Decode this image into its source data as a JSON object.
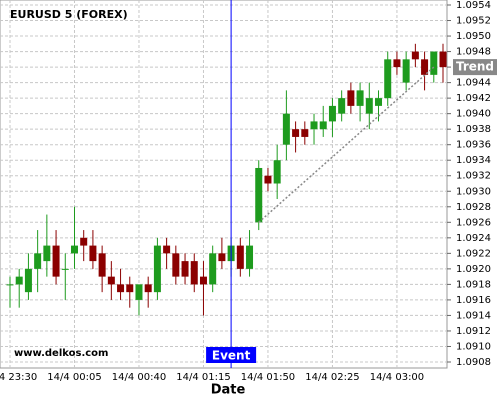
{
  "chart_data": {
    "type": "candlestick",
    "title": "EURUSD 5 (FOREX)",
    "watermark": "www.delkos.com",
    "x_label": "Date",
    "categories": [
      "14/4 23:30",
      null,
      null,
      null,
      null,
      null,
      null,
      "14/4 00:05",
      null,
      null,
      null,
      null,
      null,
      null,
      "14/4 00:40",
      null,
      null,
      null,
      null,
      null,
      null,
      "14/4 01:15",
      null,
      null,
      null,
      null,
      null,
      null,
      "14/4 01:50",
      null,
      null,
      null,
      null,
      null,
      null,
      "14/4 02:25",
      null,
      null,
      null,
      null,
      null,
      null,
      "14/4 03:00",
      null,
      null,
      null,
      null,
      null
    ],
    "open": [
      1.0918,
      1.0918,
      1.0917,
      1.092,
      1.0921,
      1.0923,
      1.092,
      1.0922,
      1.0924,
      1.0923,
      1.0922,
      1.0919,
      1.0918,
      1.0918,
      1.0916,
      1.0918,
      1.0917,
      1.0923,
      1.0922,
      1.0921,
      1.0921,
      1.0919,
      1.0918,
      1.0922,
      1.0921,
      1.0923,
      1.092,
      1.0926,
      1.0932,
      1.0931,
      1.0936,
      1.0938,
      1.0938,
      1.0938,
      1.0938,
      1.0939,
      1.094,
      1.0943,
      1.0941,
      1.094,
      1.0941,
      1.0942,
      1.0947,
      1.0944,
      1.0948,
      1.0947,
      1.0945,
      1.0948
    ],
    "high": [
      1.0919,
      1.092,
      1.0922,
      1.0925,
      1.0927,
      1.0925,
      1.0922,
      1.0928,
      1.0925,
      1.0925,
      1.0923,
      1.0921,
      1.092,
      1.0919,
      1.0918,
      1.0919,
      1.0924,
      1.0924,
      1.0923,
      1.0922,
      1.0922,
      1.0921,
      1.0923,
      1.0924,
      1.0924,
      1.0924,
      1.0925,
      1.0934,
      1.0933,
      1.0936,
      1.0943,
      1.0939,
      1.0939,
      1.094,
      1.0941,
      1.0942,
      1.0943,
      1.0944,
      1.0944,
      1.0944,
      1.0943,
      1.0948,
      1.0948,
      1.0948,
      1.0949,
      1.0948,
      1.0948,
      1.0949
    ],
    "low": [
      1.0915,
      1.0915,
      1.0916,
      1.0917,
      1.0919,
      1.0918,
      1.0916,
      1.092,
      1.0921,
      1.092,
      1.0917,
      1.0916,
      1.0916,
      1.0915,
      1.0914,
      1.0915,
      1.0916,
      1.092,
      1.0918,
      1.0918,
      1.0917,
      1.0914,
      1.0917,
      1.092,
      1.0919,
      1.0919,
      1.0919,
      1.0925,
      1.093,
      1.0929,
      1.0934,
      1.0935,
      1.0936,
      1.0936,
      1.0937,
      1.0937,
      1.0939,
      1.094,
      1.0939,
      1.0938,
      1.0939,
      1.0941,
      1.0945,
      1.0943,
      1.0946,
      1.0943,
      1.0944,
      1.0944
    ],
    "close": [
      1.0918,
      1.0919,
      1.092,
      1.0922,
      1.0923,
      1.0919,
      1.092,
      1.0923,
      1.0923,
      1.0921,
      1.0919,
      1.0918,
      1.0917,
      1.0917,
      1.0918,
      1.0917,
      1.0923,
      1.0922,
      1.0919,
      1.0919,
      1.0918,
      1.0918,
      1.0922,
      1.0921,
      1.0923,
      1.092,
      1.0923,
      1.0933,
      1.0931,
      1.0934,
      1.094,
      1.0937,
      1.0937,
      1.0939,
      1.0939,
      1.0941,
      1.0942,
      1.0941,
      1.0943,
      1.0942,
      1.0942,
      1.0947,
      1.0946,
      1.0947,
      1.0947,
      1.0945,
      1.0948,
      1.0946
    ],
    "up_color": "#1e9b1e",
    "down_color": "#8b0000",
    "ylim": [
      1.0908,
      1.0954
    ],
    "yticks": [
      1.0908,
      {
        "value": 1.091,
        "label": "1.0910"
      },
      1.0912,
      1.0914,
      1.0916,
      1.0918,
      {
        "value": 1.092,
        "label": "1.0920"
      },
      1.0922,
      1.0924,
      1.0926,
      1.0928,
      {
        "value": 1.093,
        "label": "1.0930"
      },
      1.0932,
      1.0934,
      1.0936,
      1.0938,
      {
        "value": 1.094,
        "label": "1.0940"
      },
      1.0942,
      1.0944,
      1.0946,
      1.0948,
      {
        "value": 1.095,
        "label": "1.0950"
      },
      1.0952,
      1.0954
    ],
    "grid": true,
    "event": {
      "label": "Event",
      "index": 24,
      "color": "#0000ff"
    },
    "trend": {
      "label": "Trend",
      "from": {
        "index": 27,
        "value": 1.0926
      },
      "to": {
        "index": 46,
        "value": 1.0946
      },
      "color": "#888888"
    }
  }
}
